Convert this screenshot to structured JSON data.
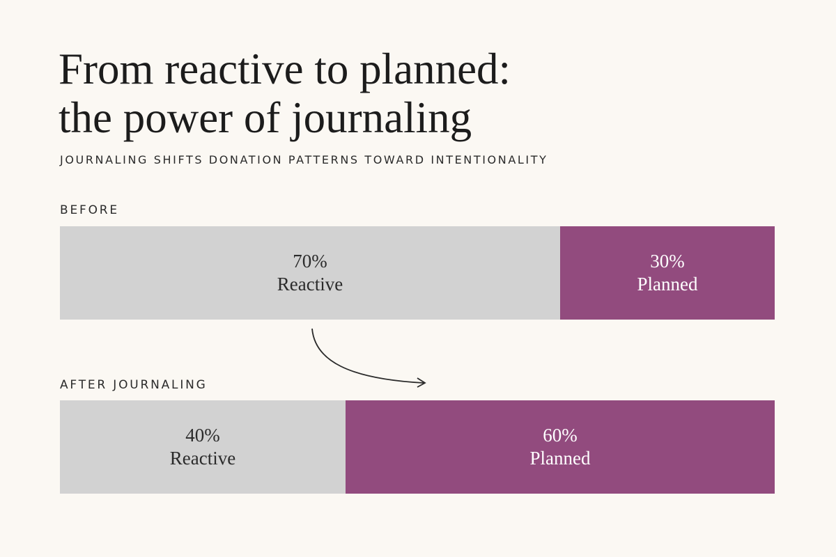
{
  "title_lines": [
    "From reactive to planned:",
    "the power of journaling"
  ],
  "subtitle": "JOURNALING SHIFTS DONATION PATTERNS TOWARD INTENTIONALITY",
  "colors": {
    "background": "#fbf8f3",
    "reactive": "#d2d2d2",
    "planned": "#924b7e",
    "text_dark": "#2b2b2b",
    "text_light": "#ffffff"
  },
  "icons": [
    "curved-arrow-icon"
  ],
  "chart_data": {
    "type": "bar",
    "orientation": "horizontal",
    "stacked": true,
    "normalized": "percent",
    "categories": [
      "BEFORE",
      "AFTER JOURNALING"
    ],
    "series": [
      {
        "name": "Reactive",
        "values": [
          70,
          40
        ],
        "labels": [
          "70%",
          "40%"
        ],
        "color": "#d2d2d2"
      },
      {
        "name": "Planned",
        "values": [
          30,
          60
        ],
        "labels": [
          "30%",
          "60%"
        ],
        "color": "#924b7e"
      }
    ],
    "title": "From reactive to planned: the power of journaling",
    "subtitle": "JOURNALING SHIFTS DONATION PATTERNS TOWARD INTENTIONALITY",
    "xlim": [
      0,
      100
    ],
    "grid": false,
    "legend": "none"
  }
}
